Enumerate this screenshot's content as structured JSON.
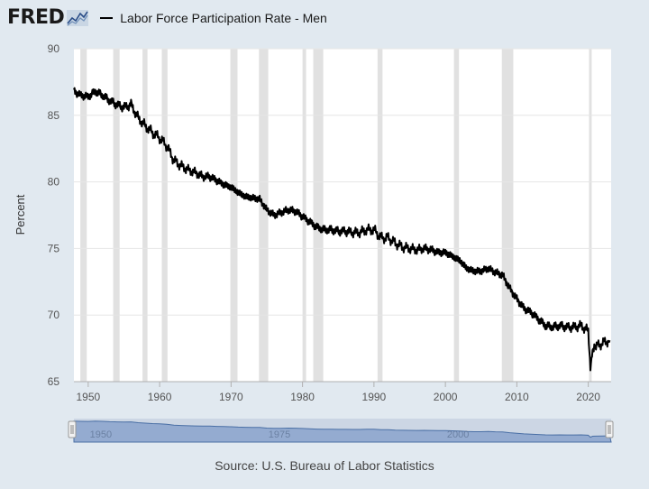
{
  "header": {
    "logo_text": "FRED",
    "logo_icon": "line-graph-icon",
    "legend_label": "Labor Force Participation Rate - Men"
  },
  "source": "Source: U.S. Bureau of Labor Statistics",
  "colors": {
    "background": "#e1e9f0",
    "plot_background": "#ffffff",
    "recession": "#e1e1e1",
    "series": "#000000",
    "navigator_fill": "#8aa3cc",
    "navigator_stroke": "#4a6fa5"
  },
  "chart_data": {
    "type": "line",
    "title": "",
    "xlabel": "",
    "ylabel": "Percent",
    "xlim": [
      1948,
      2023.2
    ],
    "ylim": [
      65,
      90
    ],
    "yticks": [
      65,
      70,
      75,
      80,
      85,
      90
    ],
    "xticks": [
      1950,
      1960,
      1970,
      1980,
      1990,
      2000,
      2010,
      2020
    ],
    "grid": "horizontal",
    "legend": "top",
    "recessions": [
      [
        1948.9,
        1949.8
      ],
      [
        1953.5,
        1954.4
      ],
      [
        1957.6,
        1958.3
      ],
      [
        1960.3,
        1961.1
      ],
      [
        1969.9,
        1970.9
      ],
      [
        1973.9,
        1975.2
      ],
      [
        1980.0,
        1980.5
      ],
      [
        1981.5,
        1982.9
      ],
      [
        1990.5,
        1991.2
      ],
      [
        2001.2,
        2001.9
      ],
      [
        2007.9,
        2009.5
      ],
      [
        2020.1,
        2020.3
      ]
    ],
    "navigator_labels": [
      "1950",
      "1975",
      "2000"
    ],
    "series": [
      {
        "x": [
          1948.0,
          1949.0,
          1950.0,
          1951.0,
          1952.0,
          1953.0,
          1954.0,
          1955.0,
          1956.0,
          1957.0,
          1958.0,
          1959.0,
          1960.0,
          1961.0,
          1962.0,
          1963.0,
          1964.0,
          1965.0,
          1966.0,
          1967.0,
          1968.0,
          1969.0,
          1970.0,
          1971.0,
          1972.0,
          1973.0,
          1974.0,
          1975.0,
          1976.0,
          1977.0,
          1978.0,
          1979.0,
          1980.0,
          1981.0,
          1982.0,
          1983.0,
          1984.0,
          1985.0,
          1986.0,
          1987.0,
          1988.0,
          1989.0,
          1990.0,
          1991.0,
          1992.0,
          1993.0,
          1994.0,
          1995.0,
          1996.0,
          1997.0,
          1998.0,
          1999.0,
          2000.0,
          2001.0,
          2002.0,
          2003.0,
          2004.0,
          2005.0,
          2006.0,
          2007.0,
          2008.0,
          2009.0,
          2010.0,
          2011.0,
          2012.0,
          2013.0,
          2014.0,
          2015.0,
          2016.0,
          2017.0,
          2018.0,
          2019.0,
          2020.0,
          2020.3,
          2020.6,
          2021.0,
          2022.0,
          2023.0
        ],
        "values": [
          86.8,
          86.5,
          86.4,
          86.8,
          86.5,
          86.1,
          85.8,
          85.6,
          85.8,
          84.8,
          84.2,
          83.7,
          83.3,
          82.7,
          81.6,
          81.2,
          80.9,
          80.7,
          80.4,
          80.4,
          80.1,
          79.8,
          79.6,
          79.2,
          78.9,
          78.8,
          78.7,
          77.9,
          77.5,
          77.7,
          77.9,
          77.8,
          77.4,
          77.0,
          76.6,
          76.4,
          76.4,
          76.3,
          76.3,
          76.2,
          76.2,
          76.4,
          76.4,
          75.8,
          75.8,
          75.4,
          75.1,
          75.0,
          74.9,
          75.0,
          74.9,
          74.7,
          74.7,
          74.4,
          74.1,
          73.5,
          73.3,
          73.3,
          73.5,
          73.2,
          73.0,
          72.0,
          71.2,
          70.5,
          70.2,
          69.7,
          69.2,
          69.1,
          69.2,
          69.1,
          69.1,
          69.2,
          68.8,
          66.2,
          67.5,
          67.6,
          67.9,
          68.1
        ]
      }
    ]
  }
}
